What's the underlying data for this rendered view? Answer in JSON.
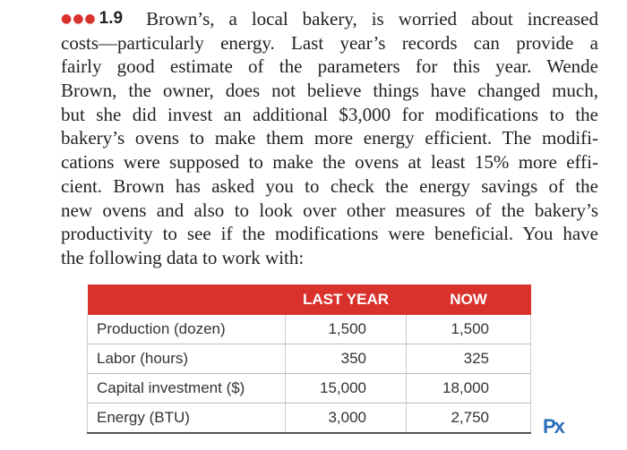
{
  "problem": {
    "number": "1.9",
    "lines": [
      "Brown’s, a local bakery, is worried about increased",
      "costs—particularly energy. Last year’s records can provide a",
      "fairly good estimate of the parameters for this year. Wende",
      "Brown, the owner, does not believe things have changed much,",
      "but she did invest an additional $3,000 for modifications to the",
      "bakery’s ovens to make them more energy efficient. The modifi-",
      "cations were supposed to make the ovens at least 15% more effi-",
      "cient. Brown has asked you to check the energy savings of the",
      "new ovens and also to look over other measures of the bakery’s",
      "productivity to see if the modifications were beneficial. You have",
      "the following data to work with:"
    ]
  },
  "table": {
    "header": [
      "LAST YEAR",
      "NOW"
    ],
    "rows": [
      [
        "Production (dozen)",
        "1,500",
        "1,500"
      ],
      [
        "Labor (hours)",
        "350",
        "325"
      ],
      [
        "Capital investment ($)",
        "15,000",
        "18,000"
      ],
      [
        "Energy (BTU)",
        "3,000",
        "2,750"
      ]
    ]
  },
  "logo": "Px"
}
